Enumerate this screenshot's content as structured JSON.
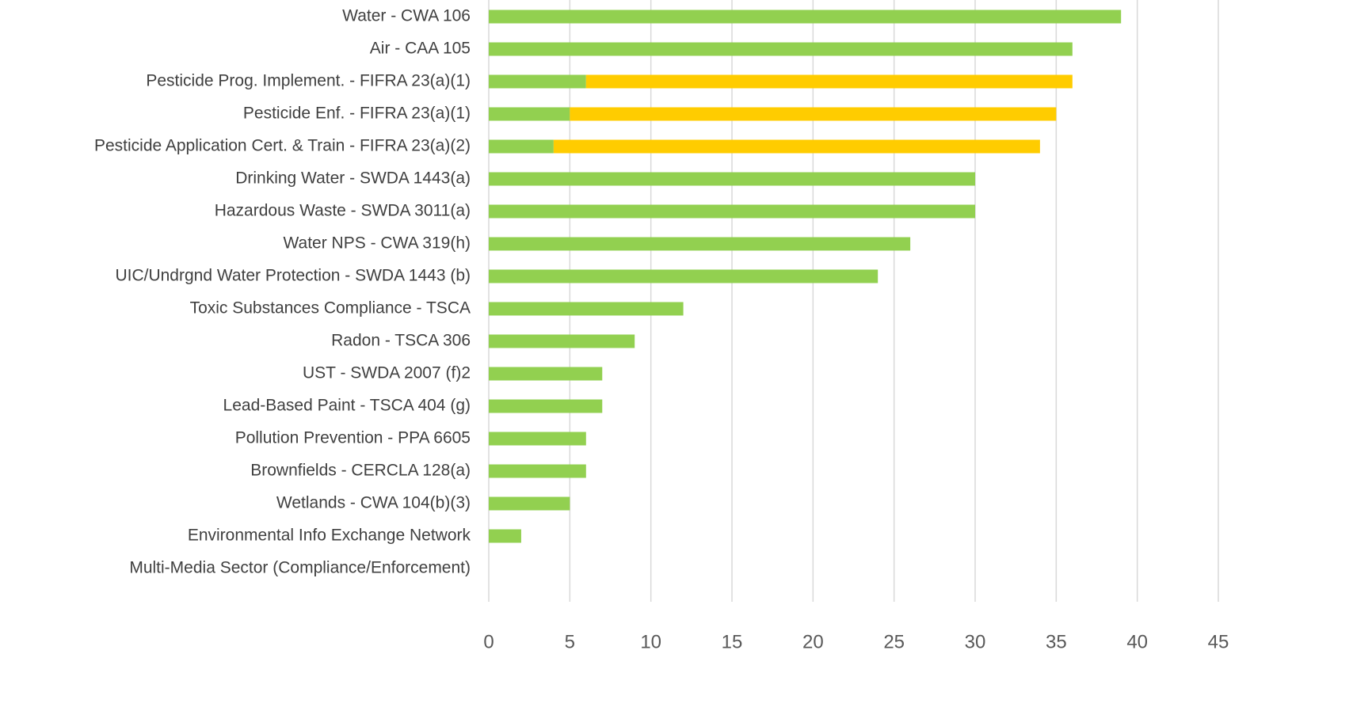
{
  "chart_data": {
    "type": "stacked-bar-horizontal",
    "categories": [
      "Water - CWA 106",
      "Air - CAA 105",
      "Pesticide Prog. Implement. - FIFRA 23(a)(1)",
      "Pesticide Enf. - FIFRA 23(a)(1)",
      "Pesticide Application Cert. & Train - FIFRA 23(a)(2)",
      "Drinking Water - SWDA 1443(a)",
      "Hazardous Waste - SWDA 3011(a)",
      "Water NPS - CWA 319(h)",
      "UIC/Undrgnd Water Protection - SWDA 1443 (b)",
      "Toxic Substances Compliance - TSCA",
      "Radon - TSCA 306",
      "UST - SWDA 2007 (f)2",
      "Lead-Based Paint - TSCA 404 (g)",
      "Pollution Prevention - PPA 6605",
      "Brownfields - CERCLA 128(a)",
      "Wetlands - CWA 104(b)(3)",
      "Environmental Info Exchange Network",
      "Multi-Media Sector (Compliance/Enforcement)"
    ],
    "series": [
      {
        "color": "#92d050",
        "values": [
          39,
          36,
          6,
          5,
          4,
          30,
          30,
          26,
          24,
          12,
          9,
          7,
          7,
          6,
          6,
          5,
          2,
          0
        ]
      },
      {
        "color": "#ffcc00",
        "values": [
          0,
          0,
          30,
          30,
          30,
          0,
          0,
          0,
          0,
          0,
          0,
          0,
          0,
          0,
          0,
          0,
          0,
          0
        ]
      }
    ],
    "xlim": [
      0,
      45
    ],
    "xticks": [
      0,
      5,
      10,
      15,
      20,
      25,
      30,
      35,
      40,
      45
    ],
    "grid": true
  }
}
